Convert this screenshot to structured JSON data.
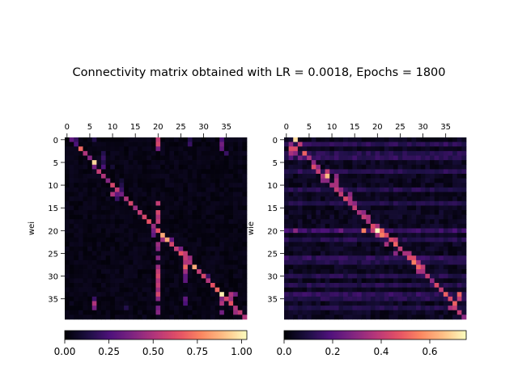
{
  "figure": {
    "title": "Connectivity matrix obtained with LR = 0.0018, Epochs = 1800"
  },
  "chart_data": [
    {
      "type": "heatmap",
      "ylabel": "wei",
      "size": 40,
      "x_ticks": [
        0,
        5,
        10,
        15,
        20,
        25,
        30,
        35
      ],
      "y_ticks": [
        0,
        5,
        10,
        15,
        20,
        25,
        30,
        35
      ],
      "x_tick_position": "top",
      "background_level": 0.04,
      "colorbar": {
        "label": "",
        "vmin": 0.0,
        "vmax": 1.03,
        "ticks": [
          0.0,
          0.25,
          0.5,
          0.75,
          1.0
        ],
        "tick_labels": [
          "0.00",
          "0.25",
          "0.50",
          "0.75",
          "1.00"
        ],
        "colormap": "magma"
      },
      "row_offsets": [
        [
          1,
          0.25
        ],
        [
          2,
          0.25
        ],
        [
          3,
          0.7
        ],
        [
          4,
          0.5
        ],
        [
          5,
          0.4
        ],
        [
          6,
          0.95
        ],
        [
          6,
          0.35
        ],
        [
          7,
          0.55
        ],
        [
          8,
          0.5
        ],
        [
          9,
          0.4
        ],
        [
          10,
          0.6
        ],
        [
          11,
          0.55
        ],
        [
          12,
          0.35
        ],
        [
          13,
          0.5
        ],
        [
          14,
          0.6
        ],
        [
          15,
          0.45
        ],
        [
          16,
          0.55
        ],
        [
          17,
          0.6
        ],
        [
          18,
          0.65
        ],
        [
          19,
          0.45
        ],
        [
          20,
          0.65
        ],
        [
          21,
          0.85
        ],
        [
          22,
          0.85
        ],
        [
          23,
          0.6
        ],
        [
          24,
          0.55
        ],
        [
          25,
          0.65
        ],
        [
          26,
          0.55
        ],
        [
          27,
          0.5
        ],
        [
          28,
          0.85
        ],
        [
          29,
          0.55
        ],
        [
          30,
          0.6
        ],
        [
          31,
          0.5
        ],
        [
          32,
          0.65
        ],
        [
          33,
          0.7
        ],
        [
          34,
          1.0
        ],
        [
          35,
          0.6
        ],
        [
          36,
          0.65
        ],
        [
          37,
          0.5
        ],
        [
          38,
          0.55
        ],
        [
          39,
          0.5
        ]
      ],
      "cells": [
        [
          0,
          1,
          0.3
        ],
        [
          0,
          2,
          0.2
        ],
        [
          0,
          6,
          0.15
        ],
        [
          0,
          20,
          0.55
        ],
        [
          0,
          27,
          0.15
        ],
        [
          0,
          34,
          0.25
        ],
        [
          1,
          20,
          0.6
        ],
        [
          1,
          27,
          0.2
        ],
        [
          1,
          34,
          0.35
        ],
        [
          2,
          20,
          0.35
        ],
        [
          2,
          34,
          0.3
        ],
        [
          3,
          8,
          0.15
        ],
        [
          3,
          35,
          0.2
        ],
        [
          4,
          8,
          0.2
        ],
        [
          5,
          8,
          0.15
        ],
        [
          6,
          8,
          0.25
        ],
        [
          6,
          10,
          0.1
        ],
        [
          9,
          12,
          0.1
        ],
        [
          10,
          12,
          0.15
        ],
        [
          11,
          12,
          0.2
        ],
        [
          12,
          10,
          0.5
        ],
        [
          12,
          11,
          0.3
        ],
        [
          13,
          11,
          0.2
        ],
        [
          14,
          20,
          0.55
        ],
        [
          16,
          20,
          0.6
        ],
        [
          17,
          20,
          0.5
        ],
        [
          18,
          20,
          0.55
        ],
        [
          22,
          23,
          0.3
        ],
        [
          23,
          20,
          0.45
        ],
        [
          24,
          20,
          0.4
        ],
        [
          25,
          26,
          0.55
        ],
        [
          26,
          20,
          0.4
        ],
        [
          26,
          27,
          0.45
        ],
        [
          27,
          26,
          0.5
        ],
        [
          28,
          26,
          0.7
        ],
        [
          28,
          20,
          0.45
        ],
        [
          29,
          20,
          0.55
        ],
        [
          29,
          26,
          0.45
        ],
        [
          30,
          20,
          0.6
        ],
        [
          30,
          26,
          0.3
        ],
        [
          30,
          31,
          0.2
        ],
        [
          31,
          20,
          0.5
        ],
        [
          31,
          26,
          0.3
        ],
        [
          32,
          20,
          0.55
        ],
        [
          33,
          20,
          0.45
        ],
        [
          34,
          20,
          0.6
        ],
        [
          34,
          36,
          0.5
        ],
        [
          34,
          37,
          0.35
        ],
        [
          35,
          6,
          0.2
        ],
        [
          35,
          20,
          0.4
        ],
        [
          35,
          26,
          0.3
        ],
        [
          35,
          34,
          0.4
        ],
        [
          35,
          36,
          0.45
        ],
        [
          36,
          6,
          0.5
        ],
        [
          36,
          26,
          0.25
        ],
        [
          36,
          34,
          0.5
        ],
        [
          37,
          6,
          0.35
        ],
        [
          37,
          13,
          0.15
        ],
        [
          37,
          20,
          0.35
        ],
        [
          37,
          37,
          0.5
        ],
        [
          38,
          20,
          0.4
        ],
        [
          38,
          34,
          0.35
        ],
        [
          38,
          37,
          0.45
        ],
        [
          20,
          19,
          0.35
        ],
        [
          21,
          19,
          0.3
        ],
        [
          22,
          21,
          0.45
        ],
        [
          24,
          25,
          0.35
        ]
      ]
    },
    {
      "type": "heatmap",
      "ylabel": "wie",
      "size": 40,
      "x_ticks": [
        0,
        5,
        10,
        15,
        20,
        25,
        30,
        35
      ],
      "y_ticks": [
        0,
        5,
        10,
        15,
        20,
        25,
        30,
        35
      ],
      "x_tick_position": "top",
      "background_level": 0.05,
      "colorbar": {
        "label": "",
        "vmin": 0.0,
        "vmax": 0.75,
        "ticks": [
          0.0,
          0.2,
          0.4,
          0.6
        ],
        "tick_labels": [
          "0.0",
          "0.2",
          "0.4",
          "0.6"
        ],
        "colormap": "magma"
      },
      "row_offsets": [
        [
          2,
          0.7
        ],
        [
          3,
          0.3
        ],
        [
          2,
          0.45
        ],
        [
          4,
          0.4
        ],
        [
          5,
          0.35
        ],
        [
          6,
          0.3
        ],
        [
          6,
          0.45
        ],
        [
          7,
          0.4
        ],
        [
          9,
          0.65
        ],
        [
          9,
          0.3
        ],
        [
          10,
          0.35
        ],
        [
          11,
          0.4
        ],
        [
          12,
          0.4
        ],
        [
          13,
          0.45
        ],
        [
          14,
          0.35
        ],
        [
          15,
          0.4
        ],
        [
          16,
          0.35
        ],
        [
          17,
          0.4
        ],
        [
          18,
          0.35
        ],
        [
          19,
          0.45
        ],
        [
          20,
          0.75
        ],
        [
          21,
          0.55
        ],
        [
          23,
          0.45
        ],
        [
          24,
          0.5
        ],
        [
          25,
          0.4
        ],
        [
          26,
          0.35
        ],
        [
          27,
          0.45
        ],
        [
          28,
          0.55
        ],
        [
          29,
          0.5
        ],
        [
          30,
          0.35
        ],
        [
          31,
          0.4
        ],
        [
          32,
          0.3
        ],
        [
          33,
          0.45
        ],
        [
          34,
          0.35
        ],
        [
          35,
          0.5
        ],
        [
          36,
          0.45
        ],
        [
          37,
          0.5
        ],
        [
          37,
          0.4
        ],
        [
          38,
          0.35
        ],
        [
          39,
          0.3
        ]
      ],
      "row_bands": [
        [
          1,
          0.14
        ],
        [
          3,
          0.12
        ],
        [
          4,
          0.14
        ],
        [
          7,
          0.13
        ],
        [
          11,
          0.12
        ],
        [
          14,
          0.11
        ],
        [
          20,
          0.16
        ],
        [
          22,
          0.12
        ],
        [
          26,
          0.14
        ],
        [
          27,
          0.11
        ],
        [
          30,
          0.12
        ],
        [
          32,
          0.12
        ],
        [
          34,
          0.14
        ],
        [
          35,
          0.12
        ],
        [
          37,
          0.11
        ]
      ],
      "cells": [
        [
          1,
          1,
          0.3
        ],
        [
          1,
          3,
          0.4
        ],
        [
          2,
          1,
          0.45
        ],
        [
          3,
          1,
          0.35
        ],
        [
          3,
          2,
          0.3
        ],
        [
          3,
          4,
          0.5
        ],
        [
          4,
          1,
          0.2
        ],
        [
          4,
          3,
          0.25
        ],
        [
          4,
          5,
          0.35
        ],
        [
          5,
          6,
          0.25
        ],
        [
          6,
          7,
          0.3
        ],
        [
          7,
          9,
          0.4
        ],
        [
          8,
          8,
          0.35
        ],
        [
          8,
          11,
          0.3
        ],
        [
          9,
          8,
          0.3
        ],
        [
          9,
          9,
          0.25
        ],
        [
          9,
          11,
          0.35
        ],
        [
          10,
          11,
          0.35
        ],
        [
          10,
          10,
          0.3
        ],
        [
          11,
          12,
          0.3
        ],
        [
          12,
          12,
          0.25
        ],
        [
          12,
          14,
          0.3
        ],
        [
          13,
          14,
          0.35
        ],
        [
          14,
          15,
          0.3
        ],
        [
          15,
          15,
          0.35
        ],
        [
          16,
          17,
          0.3
        ],
        [
          17,
          18,
          0.35
        ],
        [
          18,
          18,
          0.3
        ],
        [
          19,
          20,
          0.35
        ],
        [
          20,
          17,
          0.55
        ],
        [
          20,
          21,
          0.5
        ],
        [
          20,
          19,
          0.4
        ],
        [
          21,
          20,
          0.35
        ],
        [
          21,
          22,
          0.45
        ],
        [
          22,
          24,
          0.4
        ],
        [
          23,
          22,
          0.35
        ],
        [
          24,
          25,
          0.4
        ],
        [
          25,
          24,
          0.3
        ],
        [
          25,
          27,
          0.35
        ],
        [
          26,
          28,
          0.45
        ],
        [
          27,
          29,
          0.35
        ],
        [
          28,
          30,
          0.4
        ],
        [
          29,
          29,
          0.35
        ],
        [
          30,
          31,
          0.35
        ],
        [
          31,
          32,
          0.3
        ],
        [
          32,
          33,
          0.35
        ],
        [
          33,
          34,
          0.4
        ],
        [
          34,
          35,
          0.45
        ],
        [
          34,
          38,
          0.5
        ],
        [
          35,
          36,
          0.45
        ],
        [
          35,
          38,
          0.4
        ],
        [
          36,
          37,
          0.4
        ],
        [
          37,
          36,
          0.35
        ],
        [
          38,
          38,
          0.4
        ],
        [
          20,
          2,
          0.3
        ],
        [
          20,
          12,
          0.25
        ]
      ]
    }
  ]
}
